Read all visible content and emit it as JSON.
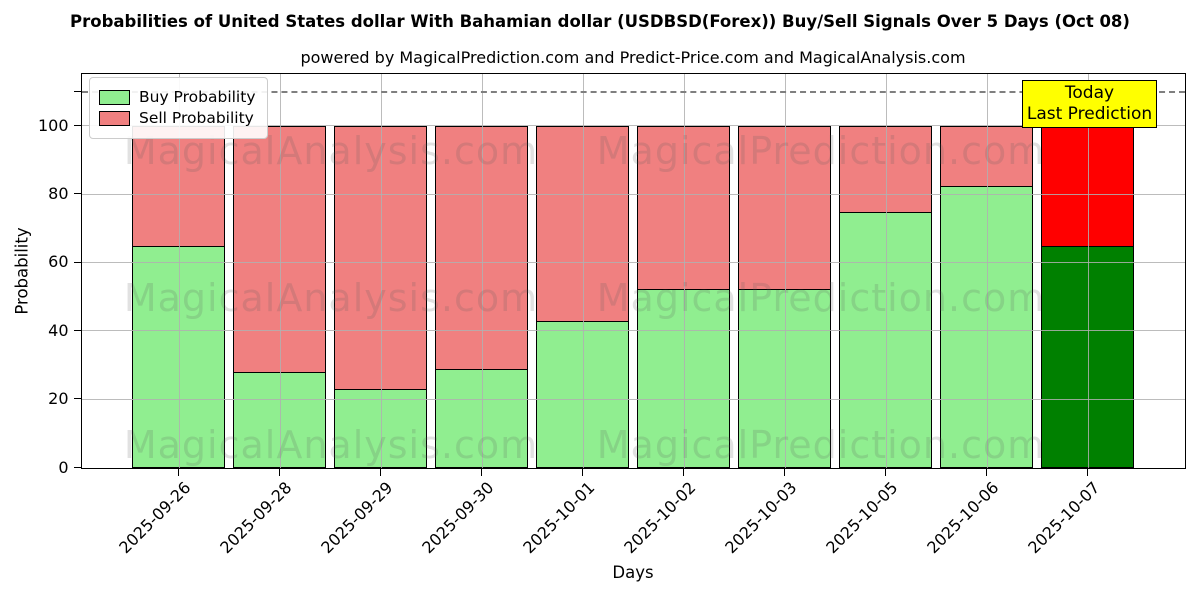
{
  "title": "Probabilities of United States dollar With Bahamian dollar (USDBSD(Forex)) Buy/Sell Signals Over 5 Days (Oct 08)",
  "subtitle": "powered by MagicalPrediction.com and Predict-Price.com and MagicalAnalysis.com",
  "legend": {
    "items": [
      {
        "label": "Buy Probability",
        "color": "#90ee90"
      },
      {
        "label": "Sell Probability",
        "color": "#f08080"
      }
    ]
  },
  "annotation": {
    "line1": "Today",
    "line2": "Last Prediction",
    "bg_color": "#ffff00"
  },
  "watermarks": {
    "left_text": "MagicalAnalysis.com",
    "right_text": "MagicalPrediction.com"
  },
  "chart_data": {
    "type": "bar",
    "stacked": true,
    "title": "Probabilities of United States dollar With Bahamian dollar (USDBSD(Forex)) Buy/Sell Signals Over 5 Days (Oct 08)",
    "xlabel": "Days",
    "ylabel": "Probability",
    "categories": [
      "2025-09-26",
      "2025-09-28",
      "2025-09-29",
      "2025-09-30",
      "2025-10-01",
      "2025-10-02",
      "2025-10-03",
      "2025-10-05",
      "2025-10-06",
      "2025-10-07"
    ],
    "series": [
      {
        "name": "Buy Probability",
        "values": [
          65,
          28,
          23,
          29,
          43,
          52.5,
          52.5,
          75,
          82.5,
          65
        ]
      },
      {
        "name": "Sell Probability",
        "values": [
          35,
          72,
          77,
          71,
          57,
          47.5,
          47.5,
          25,
          17.5,
          35
        ]
      }
    ],
    "buy_colors": [
      "#90ee90",
      "#90ee90",
      "#90ee90",
      "#90ee90",
      "#90ee90",
      "#90ee90",
      "#90ee90",
      "#90ee90",
      "#90ee90",
      "#008000"
    ],
    "sell_colors": [
      "#f08080",
      "#f08080",
      "#f08080",
      "#f08080",
      "#f08080",
      "#f08080",
      "#f08080",
      "#f08080",
      "#f08080",
      "#ff0000"
    ],
    "ylim": [
      0,
      115
    ],
    "yticks": [
      0,
      20,
      40,
      60,
      80,
      100
    ],
    "reference_line_y": 110,
    "grid": true,
    "legend_position": "upper left",
    "today_bar_index": 9
  }
}
